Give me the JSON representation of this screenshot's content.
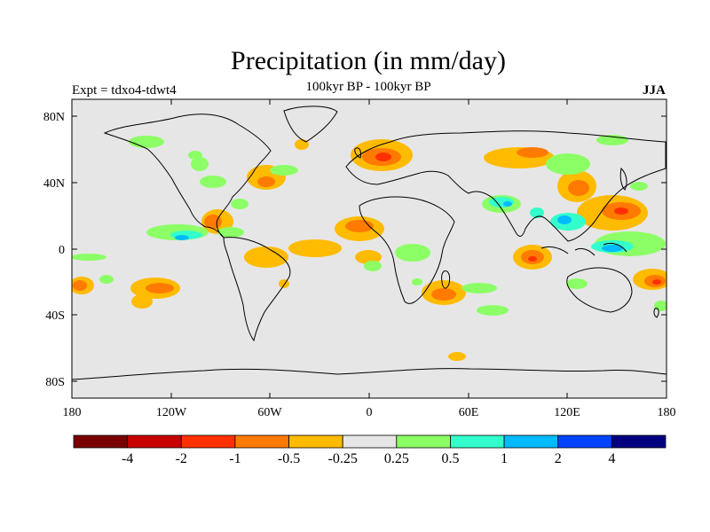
{
  "title": "Precipitation (in mm/day)",
  "subtitle": "100kyr BP - 100kyr BP",
  "left_label": "Expt = tdxo4-tdwt4",
  "right_label": "JJA",
  "axes": {
    "lat_labels": [
      "80N",
      "40N",
      "0",
      "40S",
      "80S"
    ],
    "lon_labels": [
      "180",
      "120W",
      "60W",
      "0",
      "60E",
      "120E",
      "180"
    ]
  },
  "colorbar": {
    "colors": [
      "#7a0000",
      "#c80000",
      "#ff3000",
      "#ff7a00",
      "#ffbb00",
      "#e6e6e6",
      "#8cff66",
      "#33ffcc",
      "#00bbff",
      "#0044ff",
      "#000080"
    ],
    "labels": [
      "-4",
      "-2",
      "-1",
      "-0.5",
      "-0.25",
      "0.25",
      "0.5",
      "1",
      "2",
      "4"
    ]
  },
  "colors": {
    "ocean_background": "#e6e6e6",
    "coastline": "#000000"
  }
}
